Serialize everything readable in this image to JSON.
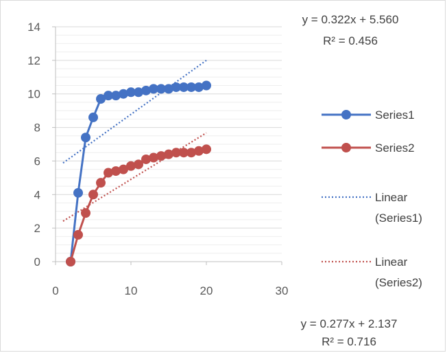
{
  "chart_data": {
    "type": "scatter",
    "title": "",
    "xlabel": "",
    "ylabel": "",
    "xlim": [
      0,
      30
    ],
    "ylim": [
      0,
      14
    ],
    "x_ticks": [
      0,
      10,
      20,
      30
    ],
    "y_ticks": [
      0,
      2,
      4,
      6,
      8,
      10,
      12,
      14
    ],
    "grid": true,
    "legend_position": "right",
    "series": [
      {
        "name": "Series1",
        "color": "#4472C4",
        "x": [
          2,
          3,
          4,
          5,
          6,
          7,
          8,
          9,
          10,
          11,
          12,
          13,
          14,
          15,
          16,
          17,
          18,
          19,
          20
        ],
        "y": [
          0,
          4.1,
          7.4,
          8.6,
          9.7,
          9.9,
          9.9,
          10.0,
          10.1,
          10.1,
          10.2,
          10.3,
          10.3,
          10.3,
          10.4,
          10.4,
          10.4,
          10.4,
          10.5
        ],
        "markers": true,
        "line_style": "solid"
      },
      {
        "name": "Series2",
        "color": "#C0504D",
        "x": [
          2,
          3,
          4,
          5,
          6,
          7,
          8,
          9,
          10,
          11,
          12,
          13,
          14,
          15,
          16,
          17,
          18,
          19,
          20
        ],
        "y": [
          0,
          1.6,
          2.9,
          4.0,
          4.7,
          5.3,
          5.4,
          5.5,
          5.7,
          5.8,
          6.1,
          6.2,
          6.3,
          6.4,
          6.5,
          6.5,
          6.5,
          6.6,
          6.7
        ],
        "markers": true,
        "line_style": "solid"
      }
    ],
    "trendlines": [
      {
        "name": "Linear (Series1)",
        "legend_lines": [
          "Linear",
          "(Series1)"
        ],
        "color": "#4472C4",
        "slope": 0.322,
        "intercept": 5.56,
        "x_range": [
          1,
          20
        ],
        "line_style": "dotted",
        "equation": "y = 0.322x + 5.560",
        "r_squared": "R² = 0.456"
      },
      {
        "name": "Linear (Series2)",
        "legend_lines": [
          "Linear",
          "(Series2)"
        ],
        "color": "#C0504D",
        "slope": 0.277,
        "intercept": 2.137,
        "x_range": [
          1,
          20
        ],
        "line_style": "dotted",
        "equation": "y = 0.277x + 2.137",
        "r_squared": "R² = 0.716"
      }
    ]
  }
}
